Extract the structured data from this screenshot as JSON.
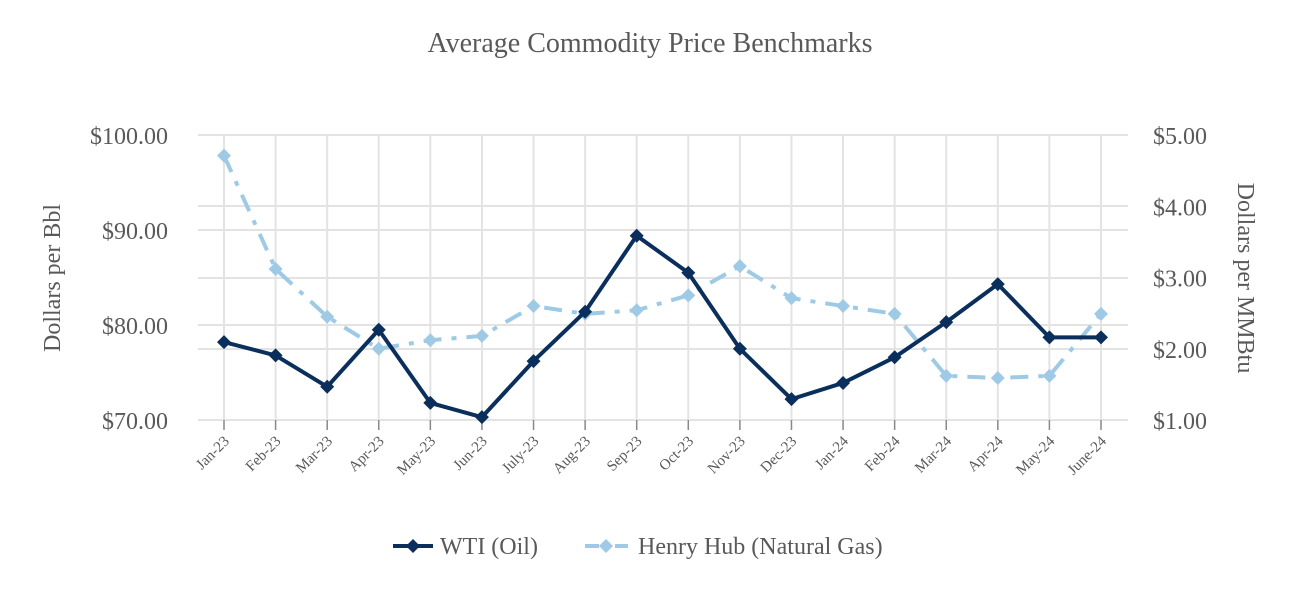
{
  "chart_data": {
    "type": "line",
    "title": "Average Commodity Price Benchmarks",
    "ylabel": "Dollars per Bbl",
    "y2label": "Dollars per MMBtu",
    "ylim": [
      70,
      100
    ],
    "y2lim": [
      1,
      5
    ],
    "yticks": [
      "$100.00",
      "$90.00",
      "$80.00",
      "$70.00"
    ],
    "yticks_values": [
      100,
      90,
      80,
      70
    ],
    "y2ticks": [
      "$5.00",
      "$4.00",
      "$3.00",
      "$2.00",
      "$1.00"
    ],
    "y2ticks_values": [
      5,
      4,
      3,
      2,
      1
    ],
    "grid": true,
    "legend_position": "bottom",
    "categories": [
      "Jan-23",
      "Feb-23",
      "Mar-23",
      "Apr-23",
      "May-23",
      "Jun-23",
      "July-23",
      "Aug-23",
      "Sep-23",
      "Oct-23",
      "Nov-23",
      "Dec-23",
      "Jan-24",
      "Feb-24",
      "Mar-24",
      "Apr-24",
      "May-24",
      "June-24"
    ],
    "series": [
      {
        "name": "WTI (Oil)",
        "axis": "left",
        "color": "#0b2f5c",
        "style": "solid",
        "values": [
          78.2,
          76.8,
          73.5,
          79.5,
          71.8,
          70.3,
          76.2,
          81.4,
          89.4,
          85.5,
          77.5,
          72.2,
          73.9,
          76.6,
          80.3,
          84.3,
          78.7,
          78.7
        ]
      },
      {
        "name": "Henry Hub (Natural Gas)",
        "axis": "right",
        "color": "#9ecae6",
        "style": "dashdot",
        "values": [
          4.71,
          3.12,
          2.45,
          2.0,
          2.12,
          2.18,
          2.6,
          2.49,
          2.54,
          2.75,
          3.16,
          2.71,
          2.6,
          2.49,
          1.62,
          1.59,
          1.62,
          2.49
        ]
      }
    ]
  }
}
